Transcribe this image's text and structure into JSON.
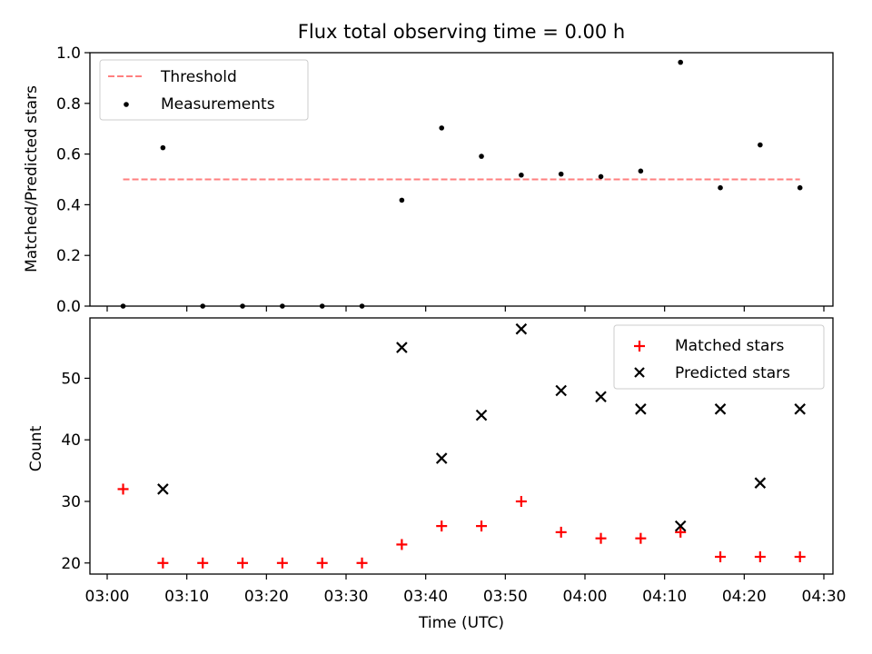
{
  "chart_data": [
    {
      "type": "scatter",
      "title": "Flux total observing time = 0.00 h",
      "xlabel": "",
      "ylabel": "Matched/Predicted stars",
      "ylim": [
        0,
        1.0
      ],
      "xlim": [
        "03:00",
        "04:30"
      ],
      "yticks": [
        "0.0",
        "0.2",
        "0.4",
        "0.6",
        "0.8",
        "1.0"
      ],
      "legend_position": "top-left",
      "grid": false,
      "threshold": {
        "name": "Threshold",
        "value": 0.5,
        "x_start": "03:02",
        "x_end": "04:27",
        "color": "#ff7f7f",
        "style": "dashed"
      },
      "series": [
        {
          "name": "Measurements",
          "marker": "dot",
          "color": "#000000",
          "points": [
            [
              "03:02",
              0.0
            ],
            [
              "03:07",
              0.625
            ],
            [
              "03:12",
              0.0
            ],
            [
              "03:17",
              0.0
            ],
            [
              "03:22",
              0.0
            ],
            [
              "03:27",
              0.0
            ],
            [
              "03:32",
              0.0
            ],
            [
              "03:37",
              0.418
            ],
            [
              "03:42",
              0.703
            ],
            [
              "03:47",
              0.591
            ],
            [
              "03:52",
              0.517
            ],
            [
              "03:57",
              0.521
            ],
            [
              "04:02",
              0.511
            ],
            [
              "04:07",
              0.533
            ],
            [
              "04:12",
              0.962
            ],
            [
              "04:17",
              0.467
            ],
            [
              "04:22",
              0.636
            ],
            [
              "04:27",
              0.467
            ]
          ]
        }
      ]
    },
    {
      "type": "scatter",
      "title": "",
      "xlabel": "Time (UTC)",
      "ylabel": "Count",
      "ylim": [
        18.2,
        59.8
      ],
      "yticks": [
        "20",
        "30",
        "40",
        "50"
      ],
      "xlim": [
        "03:00",
        "04:30"
      ],
      "xticks": [
        "03:00",
        "03:10",
        "03:20",
        "03:30",
        "03:40",
        "03:50",
        "04:00",
        "04:10",
        "04:20",
        "04:30"
      ],
      "legend_position": "top-right",
      "grid": false,
      "series": [
        {
          "name": "Matched stars",
          "marker": "plus",
          "color": "#ff0000",
          "points": [
            [
              "03:02",
              32
            ],
            [
              "03:07",
              20
            ],
            [
              "03:12",
              20
            ],
            [
              "03:17",
              20
            ],
            [
              "03:22",
              20
            ],
            [
              "03:27",
              20
            ],
            [
              "03:32",
              20
            ],
            [
              "03:37",
              23
            ],
            [
              "03:42",
              26
            ],
            [
              "03:47",
              26
            ],
            [
              "03:52",
              30
            ],
            [
              "03:57",
              25
            ],
            [
              "04:02",
              24
            ],
            [
              "04:07",
              24
            ],
            [
              "04:12",
              25
            ],
            [
              "04:17",
              21
            ],
            [
              "04:22",
              21
            ],
            [
              "04:27",
              21
            ]
          ]
        },
        {
          "name": "Predicted stars",
          "marker": "x",
          "color": "#000000",
          "points": [
            [
              "03:07",
              32
            ],
            [
              "03:37",
              55
            ],
            [
              "03:42",
              37
            ],
            [
              "03:47",
              44
            ],
            [
              "03:52",
              58
            ],
            [
              "03:57",
              48
            ],
            [
              "04:02",
              47
            ],
            [
              "04:07",
              45
            ],
            [
              "04:12",
              26
            ],
            [
              "04:17",
              45
            ],
            [
              "04:22",
              33
            ],
            [
              "04:27",
              45
            ]
          ]
        }
      ]
    }
  ]
}
